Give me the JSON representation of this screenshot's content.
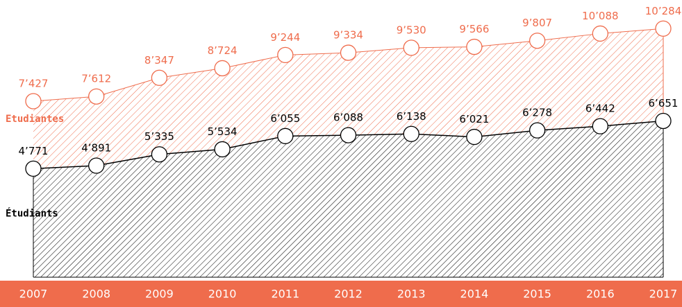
{
  "chart_data": {
    "type": "area",
    "categories": [
      "2007",
      "2008",
      "2009",
      "2010",
      "2011",
      "2012",
      "2013",
      "2014",
      "2015",
      "2016",
      "2017"
    ],
    "series": [
      {
        "name": "Etudiantes",
        "color": "#ef6c4c",
        "values": [
          7427,
          7612,
          8347,
          8724,
          9244,
          9334,
          9530,
          9566,
          9807,
          10088,
          10284
        ],
        "value_labels": [
          "7’427",
          "7’612",
          "8’347",
          "8’724",
          "9’244",
          "9’334",
          "9’530",
          "9’566",
          "9’807",
          "10’088",
          "10’284"
        ]
      },
      {
        "name": "Étudiants",
        "color": "#000000",
        "values": [
          4771,
          4891,
          5335,
          5534,
          6055,
          6088,
          6138,
          6021,
          6278,
          6442,
          6651
        ],
        "value_labels": [
          "4’771",
          "4’891",
          "5’335",
          "5’534",
          "6’055",
          "6’088",
          "6’138",
          "6’021",
          "6’278",
          "6’442",
          "6’651"
        ]
      }
    ],
    "ylim": [
      500,
      11000
    ]
  }
}
